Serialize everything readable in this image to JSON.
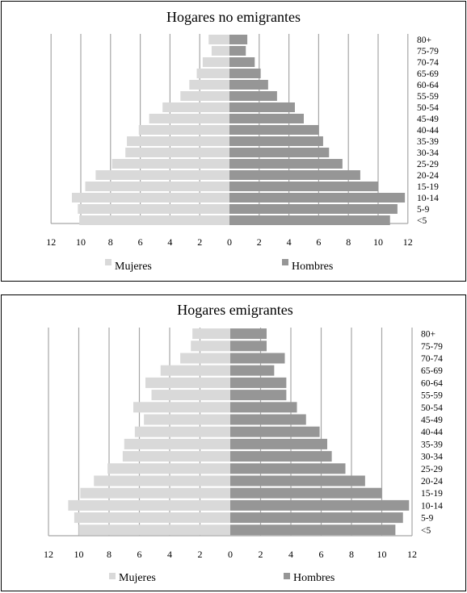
{
  "chart_data": [
    {
      "type": "bar",
      "orientation": "horizontal",
      "title": "Hogares no emigrantes",
      "categories": [
        "80+",
        "75-79",
        "70-74",
        "65-69",
        "60-64",
        "55-59",
        "50-54",
        "45-49",
        "40-44",
        "35-39",
        "30-34",
        "25-29",
        "20-24",
        "15-19",
        "10-14",
        "5-9",
        "<5"
      ],
      "series": [
        {
          "name": "Mujeres",
          "color": "#d9d9d9",
          "values": [
            1.4,
            1.2,
            1.8,
            2.2,
            2.7,
            3.3,
            4.5,
            5.4,
            6.1,
            6.9,
            7.0,
            7.9,
            9.0,
            9.7,
            10.6,
            10.2,
            10.1
          ]
        },
        {
          "name": "Hombres",
          "color": "#969696",
          "values": [
            1.2,
            1.1,
            1.7,
            2.1,
            2.6,
            3.2,
            4.4,
            5.0,
            6.0,
            6.3,
            6.7,
            7.6,
            8.8,
            10.0,
            11.8,
            11.3,
            10.8
          ]
        }
      ],
      "xlim": [
        -12,
        12
      ],
      "x_ticks": [
        12,
        10,
        8,
        6,
        4,
        2,
        0,
        2,
        4,
        6,
        8,
        10,
        12
      ],
      "grid": true,
      "legend_position": "bottom"
    },
    {
      "type": "bar",
      "orientation": "horizontal",
      "title": "Hogares emigrantes",
      "categories": [
        "80+",
        "75-79",
        "70-74",
        "65-69",
        "60-64",
        "55-59",
        "50-54",
        "45-49",
        "40-44",
        "35-39",
        "30-34",
        "25-29",
        "20-24",
        "15-19",
        "10-14",
        "5-9",
        "<5"
      ],
      "series": [
        {
          "name": "Mujeres",
          "color": "#d9d9d9",
          "values": [
            2.5,
            2.6,
            3.3,
            4.6,
            5.6,
            5.2,
            6.4,
            5.7,
            6.3,
            7.0,
            7.1,
            8.1,
            9.0,
            9.9,
            10.7,
            10.3,
            10.0
          ]
        },
        {
          "name": "Hombres",
          "color": "#969696",
          "values": [
            2.4,
            2.4,
            3.6,
            2.9,
            3.7,
            3.7,
            4.4,
            5.0,
            5.9,
            6.4,
            6.7,
            7.6,
            8.9,
            10.0,
            11.8,
            11.4,
            10.9
          ]
        }
      ],
      "xlim": [
        -12,
        12
      ],
      "x_ticks": [
        12,
        10,
        8,
        6,
        4,
        2,
        0,
        2,
        4,
        6,
        8,
        10,
        12
      ],
      "grid": true,
      "legend_position": "bottom"
    }
  ]
}
